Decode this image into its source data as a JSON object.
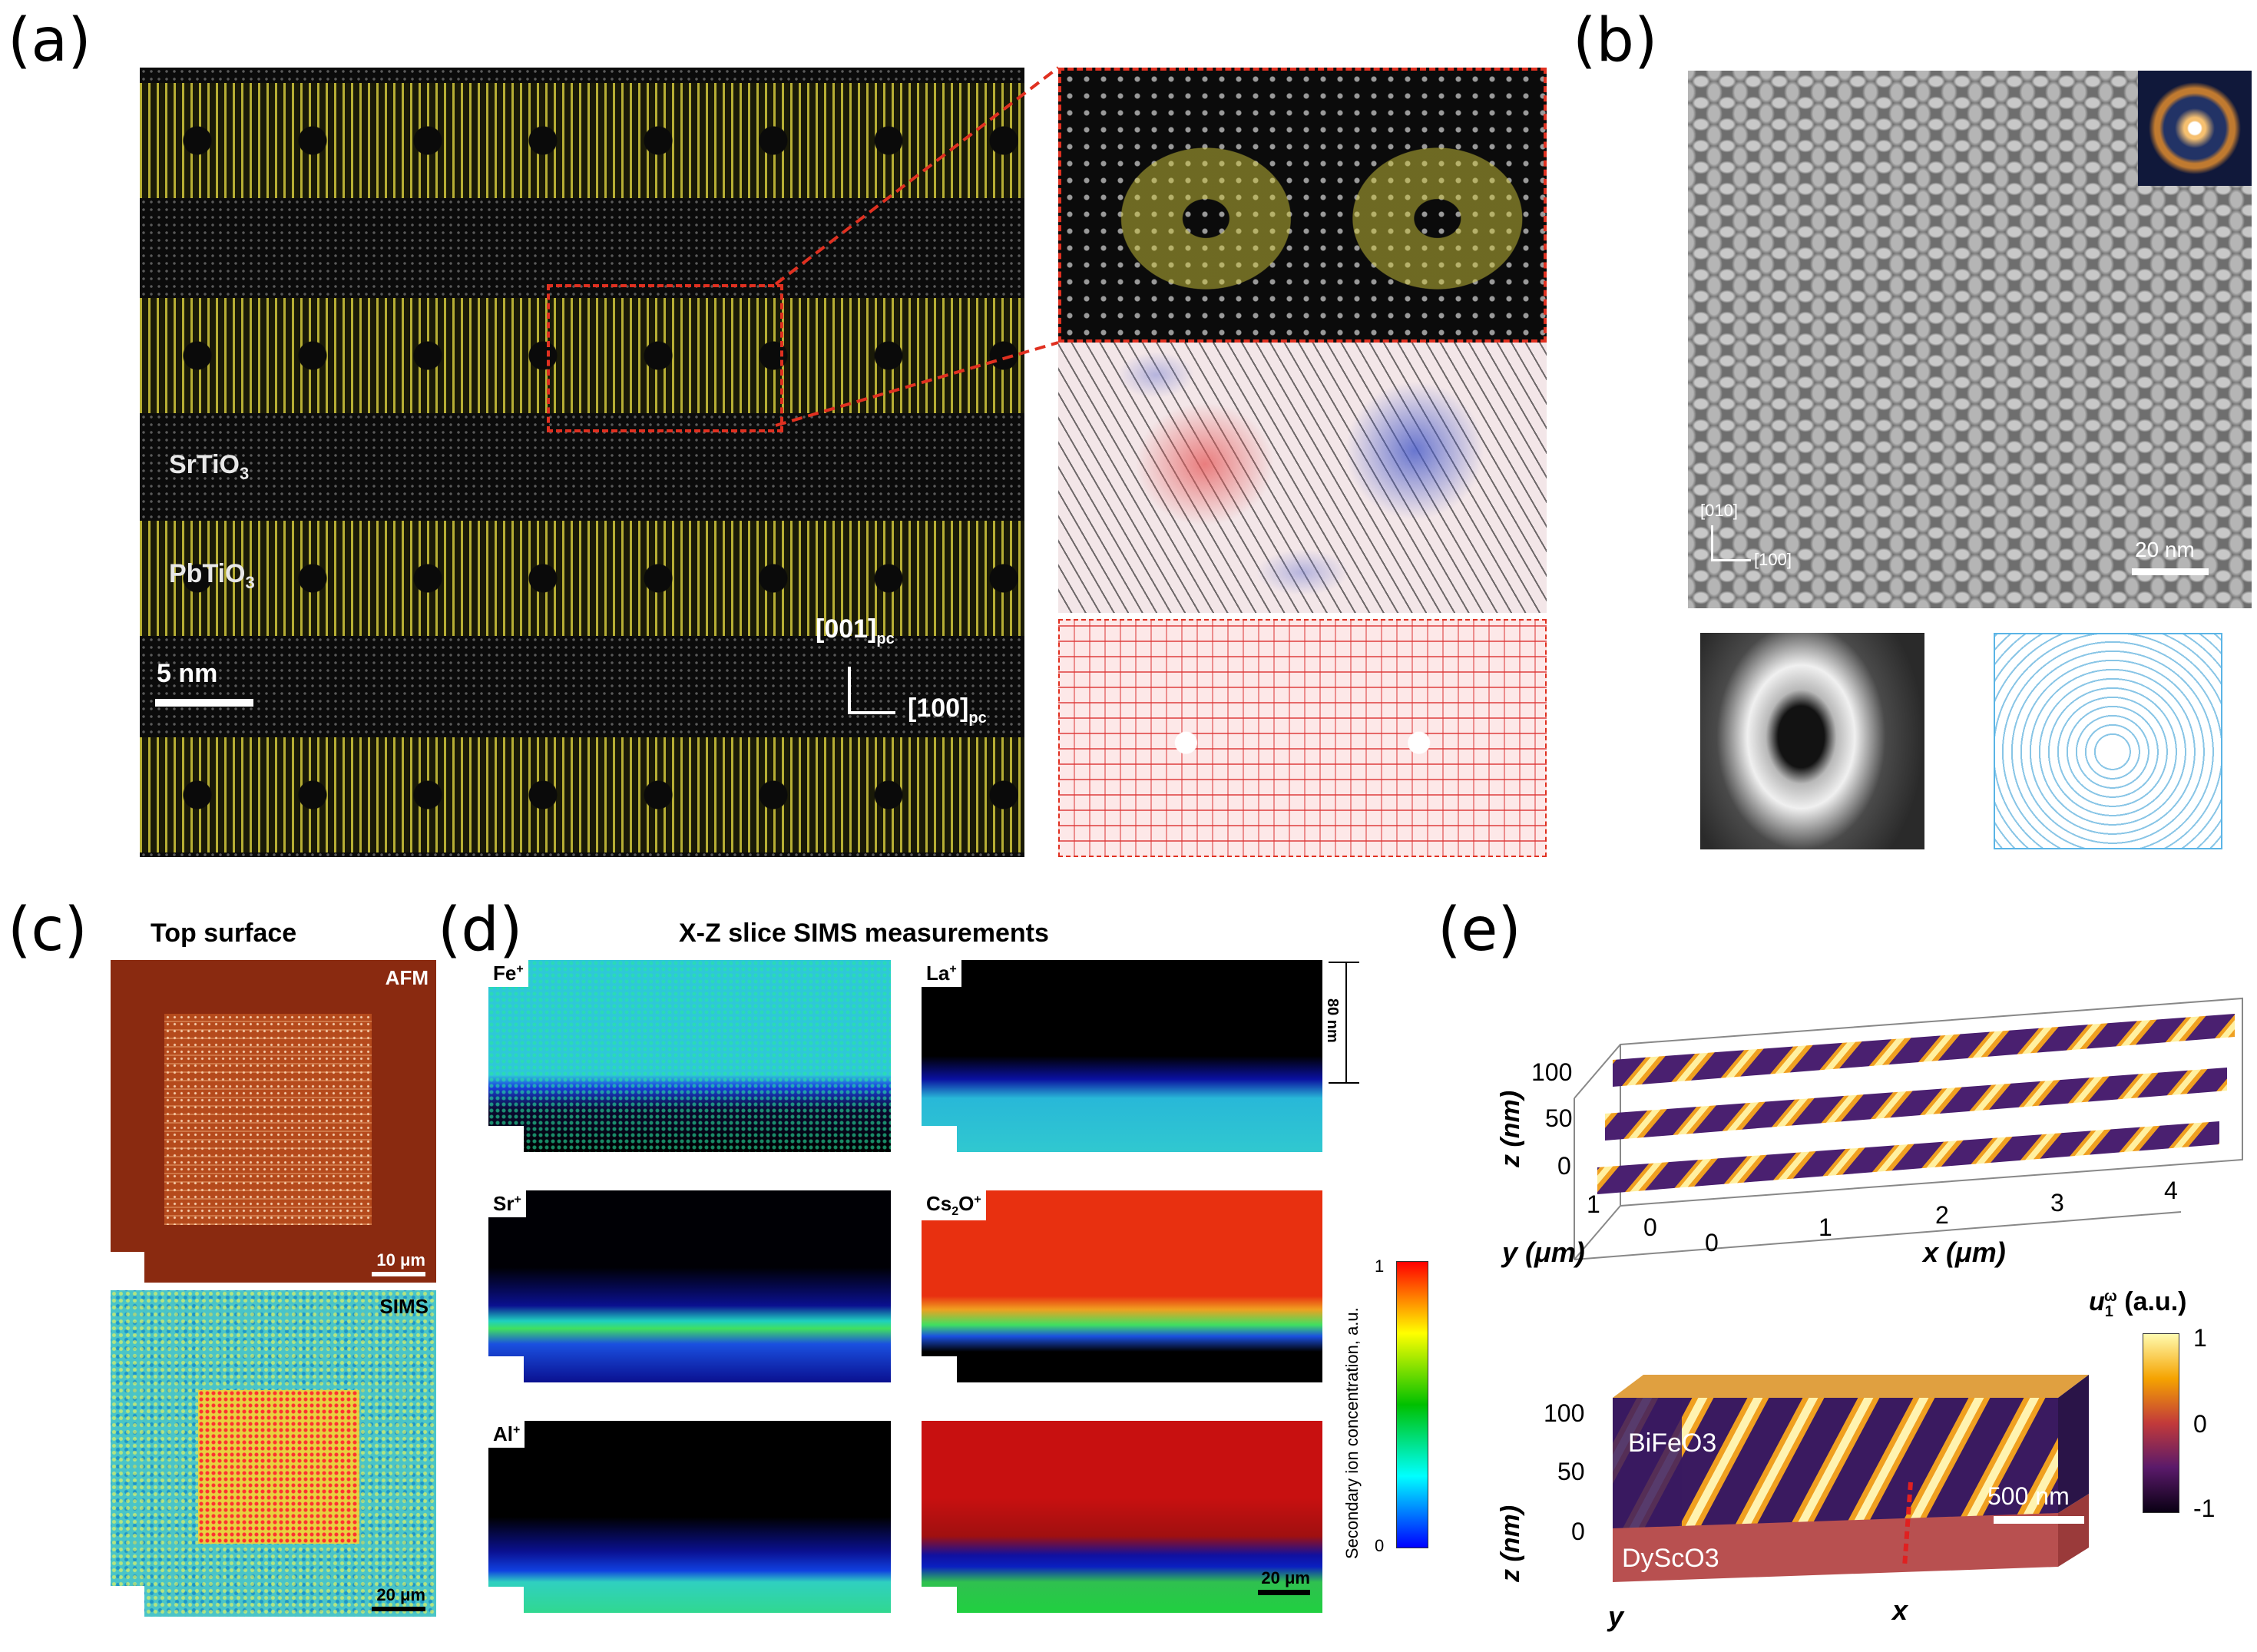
{
  "panels": {
    "a": {
      "label": "(a)",
      "sto_label": "SrTiO",
      "sto_sub": "3",
      "pto_label": "PbTiO",
      "pto_sub": "3",
      "scale_label": "5 nm",
      "axis_vertical": "[001]",
      "axis_vertical_sub": "pc",
      "axis_horizontal": "[100]",
      "axis_horizontal_sub": "pc"
    },
    "b": {
      "label": "(b)",
      "axis_vertical": "[010]",
      "axis_horizontal": "[100]",
      "scale_label": "20 nm"
    },
    "c": {
      "label": "(c)",
      "title": "Top surface",
      "afm_label": "AFM",
      "afm_scale": "10 μm",
      "sims_label": "SIMS",
      "sims_scale": "20 μm"
    },
    "d": {
      "label": "(d)",
      "title": "X-Z slice SIMS measurements",
      "depth_label": "80 nm",
      "scale_label": "20 μm",
      "maps": [
        {
          "ion": "Fe",
          "sup": "+"
        },
        {
          "ion": "La",
          "sup": "+"
        },
        {
          "ion": "Sr",
          "sup": "+"
        },
        {
          "ion": "Cs",
          "sub": "2",
          "ion2": "O",
          "sup": "+"
        },
        {
          "ion": "Al",
          "sup": "+"
        }
      ],
      "colorbar": {
        "title": "Secondary ion concentration, a.u.",
        "max": "1",
        "min": "0",
        "colors": [
          "#ff0000",
          "#ffff00",
          "#00c000",
          "#00ffff",
          "#0000ff"
        ]
      }
    },
    "e": {
      "label": "(e)",
      "top": {
        "z_label": "z (nm)",
        "z_ticks": [
          "100",
          "50",
          "0"
        ],
        "y_label": "y (μm)",
        "y_ticks": [
          "1",
          "0"
        ],
        "x_label": "x (μm)",
        "x_ticks": [
          "0",
          "1",
          "2",
          "3",
          "4"
        ]
      },
      "bottom": {
        "z_label": "z (nm)",
        "z_ticks": [
          "100",
          "50",
          "0"
        ],
        "film_label": "BiFeO",
        "film_sub": "3",
        "substrate_label": "DyScO",
        "substrate_sub": "3",
        "scale_label": "500 nm",
        "x_label": "x",
        "y_label": "y"
      },
      "colorbar": {
        "title": "u",
        "title_sup": "ω",
        "title_sub": "1",
        "title_unit": " (a.u.)",
        "max": "1",
        "mid": "0",
        "min": "-1",
        "colors": [
          "#fffbb0",
          "#f5a300",
          "#c23a3a",
          "#5a1a6a",
          "#0a0014"
        ]
      }
    }
  }
}
